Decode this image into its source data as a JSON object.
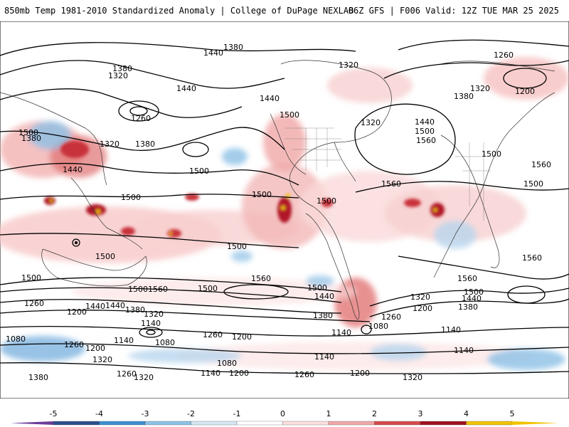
{
  "header": {
    "left_title": "850mb Temp 1981-2010 Standardized Anomaly | College of DuPage NEXLAB",
    "right_title": "06Z GFS | F006 Valid: 12Z TUE MAR 25 2025"
  },
  "colorbar": {
    "ticks": [
      "-5",
      "-4",
      "-3",
      "-2",
      "-1",
      "0",
      "1",
      "2",
      "3",
      "4",
      "5"
    ],
    "colors": [
      "#6a3d9a",
      "#2b4f8c",
      "#3a8fd0",
      "#8cc0e6",
      "#d6e6f4",
      "#ffffff",
      "#fbe0e0",
      "#f0a8a8",
      "#d84a4a",
      "#a01020",
      "#f2c200"
    ]
  },
  "contour_labels": [
    {
      "text": "1380"
    },
    {
      "text": "1440"
    },
    {
      "text": "1380"
    },
    {
      "text": "1320"
    },
    {
      "text": "1260"
    },
    {
      "text": "1440"
    },
    {
      "text": "1500"
    },
    {
      "text": "1380"
    },
    {
      "text": "1320"
    },
    {
      "text": "1380"
    },
    {
      "text": "1440"
    },
    {
      "text": "1500"
    },
    {
      "text": "1440"
    },
    {
      "text": "1320"
    },
    {
      "text": "1320"
    },
    {
      "text": "1260"
    },
    {
      "text": "1200"
    },
    {
      "text": "1320"
    },
    {
      "text": "1380"
    },
    {
      "text": "1440"
    },
    {
      "text": "1500"
    },
    {
      "text": "1560"
    },
    {
      "text": "1500"
    },
    {
      "text": "1560"
    },
    {
      "text": "1500"
    },
    {
      "text": "1500"
    },
    {
      "text": "1500"
    },
    {
      "text": "1560"
    },
    {
      "text": "1500"
    },
    {
      "text": "1500"
    },
    {
      "text": "1500"
    },
    {
      "text": "1500"
    },
    {
      "text": "1560"
    },
    {
      "text": "1500"
    },
    {
      "text": "1560"
    },
    {
      "text": "1500"
    },
    {
      "text": "1440"
    },
    {
      "text": "1560"
    },
    {
      "text": "1500"
    },
    {
      "text": "1440"
    },
    {
      "text": "1380"
    },
    {
      "text": "1320"
    },
    {
      "text": "1200"
    },
    {
      "text": "1260"
    },
    {
      "text": "1200"
    },
    {
      "text": "1440"
    },
    {
      "text": "1380"
    },
    {
      "text": "1320"
    },
    {
      "text": "1260"
    },
    {
      "text": "1140"
    },
    {
      "text": "1380"
    },
    {
      "text": "1260"
    },
    {
      "text": "1200"
    },
    {
      "text": "1140"
    },
    {
      "text": "1080"
    },
    {
      "text": "1080"
    },
    {
      "text": "1260"
    },
    {
      "text": "1200"
    },
    {
      "text": "1320"
    },
    {
      "text": "1260"
    },
    {
      "text": "1140"
    },
    {
      "text": "1080"
    },
    {
      "text": "1200"
    },
    {
      "text": "1260"
    },
    {
      "text": "1200"
    },
    {
      "text": "1320"
    },
    {
      "text": "1140"
    },
    {
      "text": "1380"
    },
    {
      "text": "1320"
    },
    {
      "text": "1140"
    },
    {
      "text": "1080"
    },
    {
      "text": "1140"
    },
    {
      "text": "1140"
    },
    {
      "text": "1500"
    },
    {
      "text": "1500"
    },
    {
      "text": "1440"
    },
    {
      "text": "1560"
    }
  ]
}
